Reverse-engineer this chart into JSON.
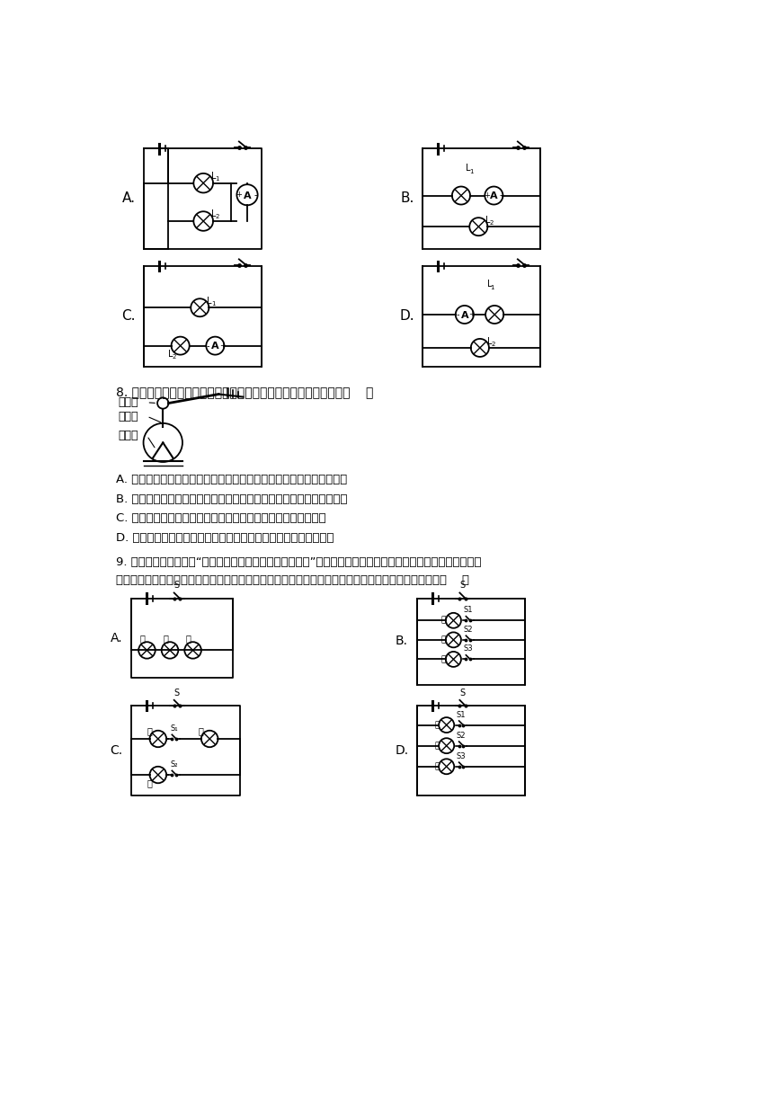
{
  "bg_color": "#ffffff",
  "text_color": "#000000",
  "q8_text": "8. 如图所示，当带电体接触验电器的金属球时，下列说法正确的是（    ）",
  "q8_options": [
    "A. 若带电体带正电荷，则这些正电荷就通过金属杆全部转移到金属箔上",
    "B. 若带电体带负电荷，则这些负电荷就通过金属杆全部转移到金属箔上",
    "C. 若带电体带正电荷，则验电器就有一部分电子转移到带电体上",
    "D. 若带电体带负电荷，则验电器就有一部分正电荷转移到带电体上"
  ],
  "q9_text1": "9. 过交通路口时要遵守“红灯停、绿灯行、黄灯也要等一等”的规则，吉祥同学用小灯泡、电池、开关和导线来模",
  "q9_text2": "拟路口的交通信号灯。要求红、绿、黄灯可独立发光，他设计了如图所示的电路图，其中符合要求的是（    ）"
}
